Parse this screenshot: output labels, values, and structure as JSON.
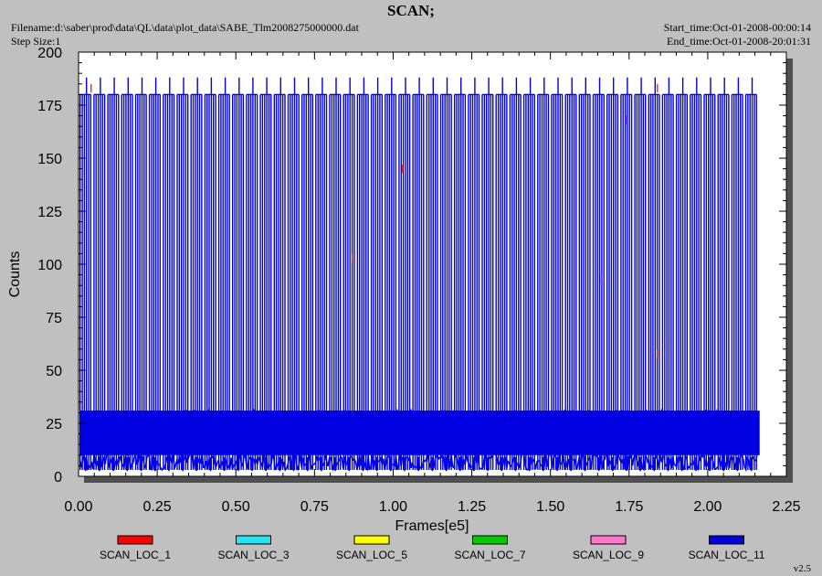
{
  "header": {
    "title": "SCAN;",
    "filename": "Filename:d:\\saber\\prod\\data\\QL\\data\\plot_data\\SABE_Tlm2008275000000.dat",
    "step_size": "Step Size:1",
    "start_time": "Start_time:Oct-01-2008-00:00:14",
    "end_time": "End_time:Oct-01-2008-20:01:31"
  },
  "version": "v2.5",
  "colors": {
    "background": "#c0c0c0",
    "plot_bg": "#ffffff",
    "SCAN_LOC_1": "#ff0000",
    "SCAN_LOC_3": "#22e5f2",
    "SCAN_LOC_5": "#ffff00",
    "SCAN_LOC_7": "#00cc00",
    "SCAN_LOC_9": "#ff77cc",
    "SCAN_LOC_11": "#0000e0"
  },
  "chart_data": {
    "type": "line",
    "title": "SCAN;",
    "xlabel": "Frames[e5]",
    "ylabel": "Counts",
    "xlim": [
      0.0,
      2.25
    ],
    "ylim": [
      0,
      200
    ],
    "xticks": [
      "0.00",
      "0.25",
      "0.50",
      "0.75",
      "1.00",
      "1.25",
      "1.50",
      "1.75",
      "2.00",
      "2.25"
    ],
    "yticks": [
      "0",
      "25",
      "50",
      "75",
      "100",
      "125",
      "150",
      "175",
      "200"
    ],
    "grid": false,
    "legend_position": "bottom",
    "data_x_range": [
      0.0,
      2.17
    ],
    "series": [
      {
        "name": "SCAN_LOC_1",
        "color": "#ff0000",
        "baseline_range": [
          10,
          30
        ],
        "spikes": [
          [
            0.04,
            185
          ],
          [
            1.84,
            185
          ],
          [
            1.84,
            60
          ],
          [
            1.74,
            170
          ],
          [
            0.87,
            105
          ],
          [
            1.03,
            147
          ]
        ]
      },
      {
        "name": "SCAN_LOC_3",
        "color": "#22e5f2",
        "baseline_range": [
          10,
          30
        ],
        "spikes": []
      },
      {
        "name": "SCAN_LOC_5",
        "color": "#ffff00",
        "baseline_range": [
          10,
          30
        ],
        "spikes": []
      },
      {
        "name": "SCAN_LOC_7",
        "color": "#00cc00",
        "baseline_range": [
          10,
          30
        ],
        "spikes": []
      },
      {
        "name": "SCAN_LOC_9",
        "color": "#ff77cc",
        "baseline_range": [
          10,
          30
        ],
        "spikes": [
          [
            1.66,
            95
          ]
        ]
      },
      {
        "name": "SCAN_LOC_11",
        "color": "#0000e0",
        "baseline_range": [
          3,
          31
        ],
        "spike_level_major": 188,
        "spike_level_minor": 180,
        "spike_count": 49,
        "x_start": 0.005,
        "x_end": 2.165
      }
    ]
  }
}
